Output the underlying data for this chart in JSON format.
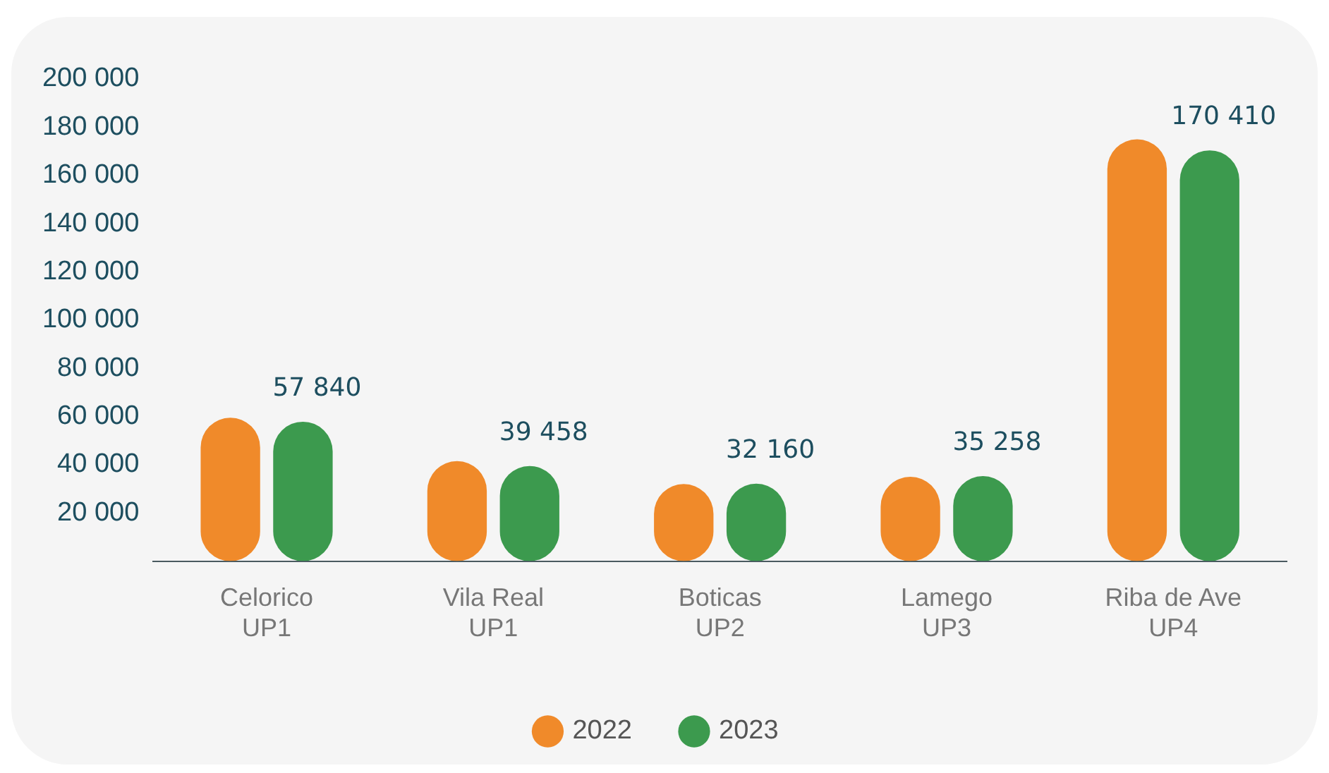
{
  "chart_data": {
    "type": "bar",
    "categories": [
      "Celorico\nUP1",
      "Vila Real\nUP1",
      "Boticas\nUP2",
      "Lamego\nUP3",
      "Riba de Ave\nUP4"
    ],
    "series": [
      {
        "name": "2022",
        "color": "#f08a2a",
        "values": [
          59500,
          41500,
          32000,
          35000,
          175000
        ]
      },
      {
        "name": "2023",
        "color": "#3c9a4e",
        "values": [
          57840,
          39458,
          32160,
          35258,
          170410
        ],
        "value_labels": [
          "57 840",
          "39 458",
          "32 160",
          "35 258",
          "170 410"
        ]
      }
    ],
    "ylim": [
      0,
      200000
    ],
    "yticks": [
      {
        "value": 20000,
        "label": "20 000"
      },
      {
        "value": 40000,
        "label": "40 000"
      },
      {
        "value": 60000,
        "label": "60 000"
      },
      {
        "value": 80000,
        "label": "80 000"
      },
      {
        "value": 100000,
        "label": "100 000"
      },
      {
        "value": 120000,
        "label": "120 000"
      },
      {
        "value": 140000,
        "label": "140 000"
      },
      {
        "value": 160000,
        "label": "160 000"
      },
      {
        "value": 180000,
        "label": "180 000"
      },
      {
        "value": 200000,
        "label": "200 000"
      }
    ],
    "grid": false,
    "legend": "bottom",
    "marker": "circle"
  }
}
